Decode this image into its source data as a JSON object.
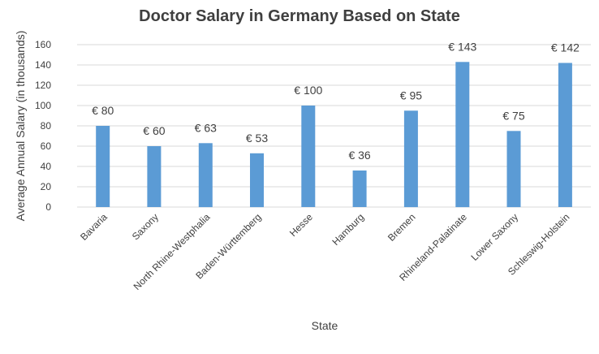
{
  "chart_data": {
    "type": "bar",
    "title": "Doctor Salary in Germany Based on State",
    "xlabel": "State",
    "ylabel": "Average Annual Salary (in thousands)",
    "categories": [
      "Bavaria",
      "Saxony",
      "North Rhine-Westphalia",
      "Baden-Württemberg",
      "Hesse",
      "Hamburg",
      "Bremen",
      "Rhineland-Palatinate",
      "Lower Saxony",
      "Schleswig-Holstein"
    ],
    "values": [
      80,
      60,
      63,
      53,
      100,
      36,
      95,
      143,
      75,
      142
    ],
    "data_labels": [
      "€ 80",
      "€ 60",
      "€ 63",
      "€ 53",
      "€ 100",
      "€ 36",
      "€ 95",
      "€ 143",
      "€ 75",
      "€ 142"
    ],
    "ylim": [
      0,
      160
    ],
    "yticks": [
      0,
      20,
      40,
      60,
      80,
      100,
      120,
      140,
      160
    ],
    "grid": true,
    "legend": "none",
    "colors": {
      "bar": "#5b9bd5",
      "grid": "#d9d9d9",
      "text": "#404040",
      "title": "#3f3f3f"
    }
  }
}
